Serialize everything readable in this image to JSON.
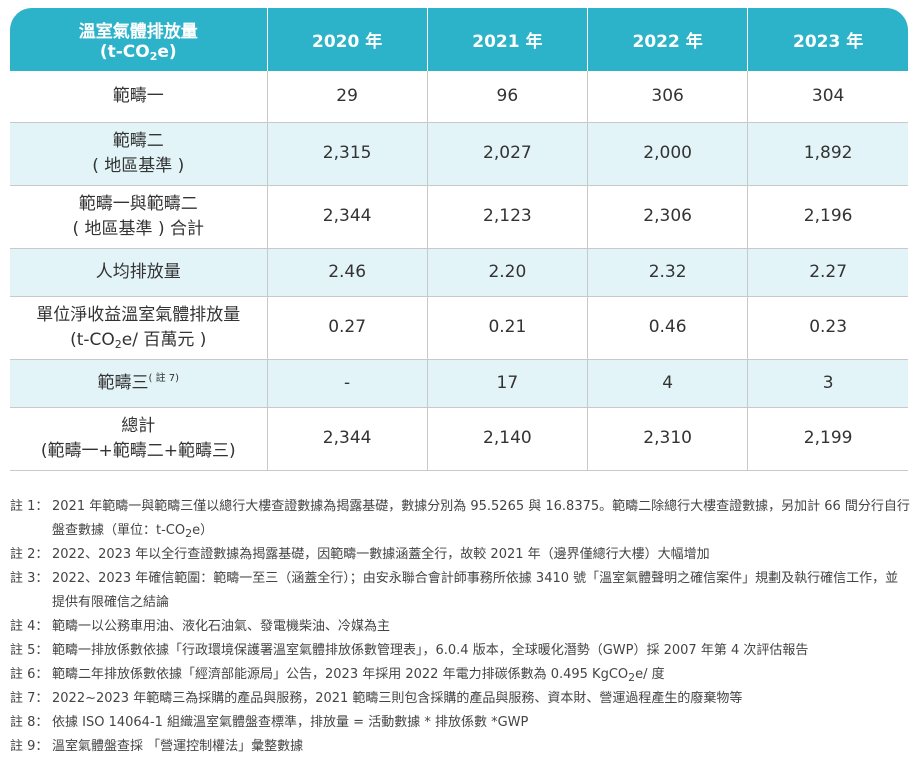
{
  "header": {
    "metric_line1": "溫室氣體排放量",
    "metric_line2_pre": "(t-CO",
    "metric_line2_sub": "2",
    "metric_line2_post": "e)",
    "years": [
      "2020 年",
      "2021 年",
      "2022 年",
      "2023 年"
    ]
  },
  "rows": [
    {
      "label1": "範疇一",
      "values": [
        "29",
        "96",
        "306",
        "304"
      ]
    },
    {
      "label1": "範疇二",
      "label2": "( 地區基準 )",
      "values": [
        "2,315",
        "2,027",
        "2,000",
        "1,892"
      ]
    },
    {
      "label1": "範疇一與範疇二",
      "label2": "( 地區基準 ) 合計",
      "values": [
        "2,344",
        "2,123",
        "2,306",
        "2,196"
      ]
    },
    {
      "label1": "人均排放量",
      "values": [
        "2.46",
        "2.20",
        "2.32",
        "2.27"
      ]
    },
    {
      "label1": "單位淨收益溫室氣體排放量",
      "label2_pre": "(t-CO",
      "label2_sub": "2",
      "label2_post": "e/ 百萬元 )",
      "values": [
        "0.27",
        "0.21",
        "0.46",
        "0.23"
      ]
    },
    {
      "label1": "範疇三",
      "label1_sup": "( 註 7)",
      "values": [
        "-",
        "17",
        "4",
        "3"
      ]
    },
    {
      "label1": "總計",
      "label2": "(範疇一+範疇二+範疇三)",
      "values": [
        "2,344",
        "2,140",
        "2,310",
        "2,199"
      ]
    }
  ],
  "notes": [
    {
      "label": "註 1：",
      "text_pre": "2021 年範疇一與範疇三僅以總行大樓查證數據為揭露基礎，數據分別為 95.5265 與 16.8375。範疇二除總行大樓查證數據，另加計 66 間分行自行盤查數據（單位：t-CO",
      "text_sub": "2",
      "text_post": "e）"
    },
    {
      "label": "註 2：",
      "text_pre": "2022、2023 年以全行查證數據為揭露基礎，因範疇一數據涵蓋全行，故較 2021 年（邊界僅總行大樓）大幅增加"
    },
    {
      "label": "註 3：",
      "text_pre": "2022、2023 年確信範圍：範疇一至三（涵蓋全行）；由安永聯合會計師事務所依據 3410 號「溫室氣體聲明之確信案件」規劃及執行確信工作，並提供有限確信之結論"
    },
    {
      "label": "註 4：",
      "text_pre": "範疇一以公務車用油、液化石油氣、發電機柴油、冷媒為主"
    },
    {
      "label": "註 5：",
      "text_pre": "範疇一排放係數依據「行政環境保護署溫室氣體排放係數管理表」，6.0.4 版本，全球暖化潛勢（GWP）採 2007 年第 4 次評估報告"
    },
    {
      "label": "註 6：",
      "text_pre": "範疇二年排放係數依據「經濟部能源局」公告，2023 年採用 2022 年電力排碳係數為 0.495 KgCO",
      "text_sub": "2",
      "text_post": "e/ 度"
    },
    {
      "label": "註 7：",
      "text_pre": "2022~2023 年範疇三為採購的產品與服務，2021 範疇三則包含採購的產品與服務、資本財、營運過程產生的廢棄物等"
    },
    {
      "label": "註 8：",
      "text_pre": "依據 ISO 14064-1 組織溫室氣體盤查標準，排放量 = 活動數據 * 排放係數 *GWP"
    },
    {
      "label": "註 9：",
      "text_pre": "溫室氣體盤查採 「營運控制權法」彙整數據"
    }
  ]
}
